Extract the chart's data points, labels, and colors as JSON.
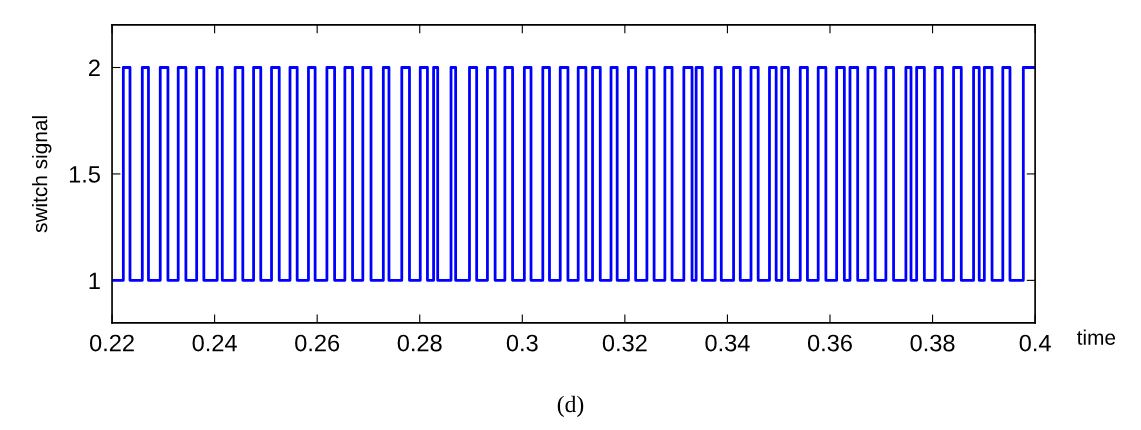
{
  "chart_data": {
    "type": "step",
    "ylabel": "switch signal",
    "xlabel": "time",
    "annotations": [
      "(d)"
    ],
    "xlim": [
      0.22,
      0.4
    ],
    "xticks": [
      0.22,
      0.24,
      0.26,
      0.28,
      0.3,
      0.32,
      0.34,
      0.36,
      0.38,
      0.4
    ],
    "ylim": [
      0.8,
      2.2
    ],
    "yticks": [
      1,
      1.5,
      2
    ],
    "grid": false,
    "legend": false,
    "series": [
      {
        "color": "#0000ff",
        "x": [
          0.22,
          0.2222,
          0.2235,
          0.2259,
          0.2271,
          0.2294,
          0.2309,
          0.2329,
          0.2344,
          0.2365,
          0.2379,
          0.2405,
          0.2415,
          0.244,
          0.2455,
          0.2476,
          0.249,
          0.2511,
          0.2526,
          0.2547,
          0.2561,
          0.2583,
          0.2596,
          0.2619,
          0.2634,
          0.2654,
          0.2669,
          0.2689,
          0.2705,
          0.2729,
          0.274,
          0.2765,
          0.278,
          0.2801,
          0.2815,
          0.2827,
          0.2835,
          0.2861,
          0.287,
          0.2897,
          0.2911,
          0.2932,
          0.2947,
          0.2966,
          0.2981,
          0.3004,
          0.3017,
          0.304,
          0.3053,
          0.3074,
          0.3089,
          0.3109,
          0.3124,
          0.3137,
          0.3152,
          0.3173,
          0.3185,
          0.3207,
          0.3221,
          0.3243,
          0.3257,
          0.3278,
          0.3292,
          0.3315,
          0.3331,
          0.3339,
          0.3351,
          0.3376,
          0.3388,
          0.3412,
          0.3425,
          0.3446,
          0.346,
          0.3482,
          0.3495,
          0.3506,
          0.3519,
          0.3542,
          0.3556,
          0.3577,
          0.3592,
          0.3613,
          0.3628,
          0.3639,
          0.3654,
          0.3674,
          0.3688,
          0.3709,
          0.3724,
          0.3748,
          0.3758,
          0.3769,
          0.3784,
          0.3805,
          0.3819,
          0.3841,
          0.3856,
          0.388,
          0.3891,
          0.3901,
          0.3916,
          0.3937,
          0.3951,
          0.3977,
          0.4
        ],
        "values": [
          1,
          2,
          1,
          2,
          1,
          2,
          1,
          2,
          1,
          2,
          1,
          2,
          1,
          2,
          1,
          2,
          1,
          2,
          1,
          2,
          1,
          2,
          1,
          2,
          1,
          2,
          1,
          2,
          1,
          2,
          1,
          2,
          1,
          2,
          1,
          2,
          1,
          2,
          1,
          2,
          1,
          2,
          1,
          2,
          1,
          2,
          1,
          2,
          1,
          2,
          1,
          2,
          1,
          2,
          1,
          2,
          1,
          2,
          1,
          2,
          1,
          2,
          1,
          2,
          1,
          2,
          1,
          2,
          1,
          2,
          1,
          2,
          1,
          2,
          1,
          2,
          1,
          2,
          1,
          2,
          1,
          2,
          1,
          2,
          1,
          2,
          1,
          2,
          1,
          2,
          1,
          2,
          1,
          2,
          1,
          2,
          1,
          2,
          1,
          2,
          1,
          2,
          1,
          2,
          2
        ]
      }
    ]
  }
}
